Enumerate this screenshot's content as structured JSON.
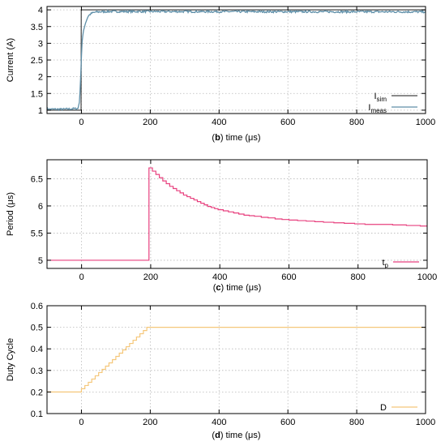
{
  "chart_data": [
    {
      "id": "b",
      "type": "line",
      "xlabel_bold": "(b)",
      "xlabel": "time (μs)",
      "ylabel": "Current (A)",
      "xlim": [
        -100,
        1000
      ],
      "ylim": [
        0.9,
        4.1
      ],
      "xticks": [
        0,
        200,
        400,
        600,
        800,
        1000
      ],
      "yticks": [
        1,
        1.5,
        2,
        2.5,
        3,
        3.5,
        4
      ],
      "grid": true,
      "legend_position": "bottom-right",
      "series": [
        {
          "name": "I",
          "name_sub": "sim",
          "color": "#444444",
          "step": false,
          "x": [
            -100,
            -1,
            -0.5,
            0,
            1000
          ],
          "y": [
            1.0,
            1.0,
            4.0,
            4.0,
            4.0
          ]
        },
        {
          "name": "I",
          "name_sub": "meas",
          "color": "#5f8fa8",
          "noise": 0.03,
          "x": [
            -100,
            -50,
            -10,
            -5,
            0,
            2,
            5,
            10,
            15,
            20,
            30,
            40,
            50,
            80,
            1000
          ],
          "y": [
            1.03,
            1.03,
            1.05,
            1.3,
            2.6,
            3.05,
            3.3,
            3.55,
            3.7,
            3.82,
            3.9,
            3.93,
            3.94,
            3.95,
            3.94
          ]
        }
      ]
    },
    {
      "id": "c",
      "type": "line",
      "xlabel_bold": "(c)",
      "xlabel": "time (μs)",
      "ylabel": "Period (μs)",
      "xlim": [
        -100,
        1000
      ],
      "ylim": [
        4.85,
        6.85
      ],
      "xticks": [
        0,
        200,
        400,
        600,
        800,
        1000
      ],
      "yticks": [
        5,
        5.5,
        6,
        6.5
      ],
      "ytick_labels": [
        "5",
        "5.5",
        "6",
        "6.5"
      ],
      "grid": true,
      "legend_position": "bottom-right",
      "series": [
        {
          "name": "t",
          "name_sub": "p",
          "color": "#e8417f",
          "step": true,
          "x": [
            -100,
            195,
            205,
            215,
            225,
            235,
            245,
            255,
            265,
            275,
            285,
            295,
            305,
            315,
            325,
            335,
            345,
            355,
            365,
            375,
            385,
            395,
            410,
            425,
            440,
            455,
            470,
            485,
            500,
            520,
            540,
            560,
            580,
            600,
            625,
            650,
            675,
            700,
            730,
            760,
            790,
            820,
            860,
            900,
            940,
            980,
            1000
          ],
          "y": [
            5.0,
            6.7,
            6.64,
            6.58,
            6.52,
            6.46,
            6.41,
            6.36,
            6.32,
            6.28,
            6.24,
            6.2,
            6.17,
            6.14,
            6.11,
            6.08,
            6.05,
            6.02,
            5.99,
            5.97,
            5.95,
            5.93,
            5.91,
            5.89,
            5.87,
            5.85,
            5.83,
            5.82,
            5.81,
            5.79,
            5.78,
            5.76,
            5.75,
            5.74,
            5.73,
            5.72,
            5.71,
            5.7,
            5.69,
            5.68,
            5.67,
            5.66,
            5.66,
            5.65,
            5.64,
            5.63,
            5.63
          ]
        }
      ]
    },
    {
      "id": "d",
      "type": "line",
      "xlabel_bold": "(d)",
      "xlabel": "time (μs)",
      "ylabel": "Duty Cycle",
      "xlim": [
        -100,
        1000
      ],
      "ylim": [
        0.1,
        0.6
      ],
      "xticks": [
        0,
        200,
        400,
        600,
        800,
        1000
      ],
      "yticks": [
        0.1,
        0.2,
        0.3,
        0.4,
        0.5,
        0.6
      ],
      "ytick_labels": [
        "0.1",
        "0.2",
        "0.3",
        "0.4",
        "0.5",
        "0.6"
      ],
      "grid": true,
      "legend_position": "bottom-right",
      "series": [
        {
          "name": "D",
          "name_sub": "",
          "color": "#f5c77a",
          "step": true,
          "x": [
            -100,
            0,
            10,
            20,
            30,
            40,
            50,
            60,
            70,
            80,
            90,
            100,
            110,
            120,
            130,
            140,
            150,
            160,
            170,
            180,
            190,
            200,
            1000
          ],
          "y": [
            0.2,
            0.215,
            0.23,
            0.245,
            0.26,
            0.275,
            0.29,
            0.305,
            0.32,
            0.335,
            0.35,
            0.365,
            0.38,
            0.395,
            0.41,
            0.425,
            0.44,
            0.455,
            0.47,
            0.485,
            0.5,
            0.5,
            0.5
          ]
        }
      ]
    }
  ]
}
